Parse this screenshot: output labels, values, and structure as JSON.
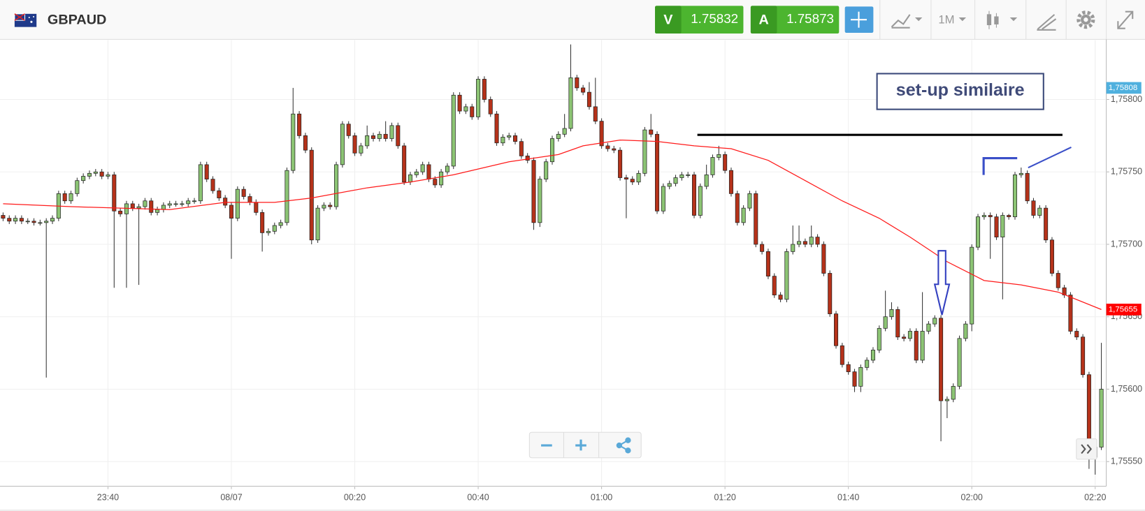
{
  "header": {
    "symbol": "GBPAUD",
    "sell_label": "V",
    "sell_price": 1.75832,
    "buy_label": "A",
    "buy_price": 1.75873,
    "timeframe": "1M"
  },
  "chart_data": {
    "type": "candlestick",
    "annotation": "set-up similaire",
    "up_color": "#8cc474",
    "down_color": "#b5321a",
    "xlim": [
      -0.5,
      178.8
    ],
    "ylim": [
      1.75533,
      1.75841
    ],
    "grid": true,
    "xticks": [
      {
        "value": 17,
        "label": "23:40"
      },
      {
        "value": 37,
        "label": "08/07"
      },
      {
        "value": 57,
        "label": "00:20"
      },
      {
        "value": 77,
        "label": "00:40"
      },
      {
        "value": 97,
        "label": "01:00"
      },
      {
        "value": 117,
        "label": "01:20"
      },
      {
        "value": 137,
        "label": "01:40"
      },
      {
        "value": 157,
        "label": "02:00"
      },
      {
        "value": 177,
        "label": "02:20"
      }
    ],
    "yticks": [
      {
        "value": 1.7555,
        "label": "1,75550"
      },
      {
        "value": 1.756,
        "label": "1,75600"
      },
      {
        "value": 1.7565,
        "label": "1,75650"
      },
      {
        "value": 1.757,
        "label": "1,75700"
      },
      {
        "value": 1.7575,
        "label": "1,75750"
      },
      {
        "value": 1.758,
        "label": "1,75800"
      }
    ],
    "price_tags": [
      {
        "value": 1.75808,
        "label": "1,75808",
        "color": "#4fb0de"
      },
      {
        "value": 1.75655,
        "label": "1,75655",
        "color": "#ff0000"
      }
    ],
    "open": [
      1.7572,
      1.75718,
      1.75716,
      1.75718,
      1.75716,
      1.75716,
      1.75715,
      1.75715,
      1.75716,
      1.75718,
      1.75735,
      1.7573,
      1.75735,
      1.75744,
      1.75747,
      1.75749,
      1.7575,
      1.75747,
      1.75748,
      1.75723,
      1.75721,
      1.75728,
      1.75725,
      1.75726,
      1.7573,
      1.75722,
      1.75724,
      1.75727,
      1.75728,
      1.75728,
      1.75728,
      1.7573,
      1.7573,
      1.75755,
      1.75745,
      1.75737,
      1.75732,
      1.75727,
      1.75718,
      1.75738,
      1.75733,
      1.75729,
      1.75722,
      1.75708,
      1.75709,
      1.75713,
      1.75715,
      1.75751,
      1.7579,
      1.75775,
      1.75765,
      1.75703,
      1.75725,
      1.75727,
      1.75726,
      1.75755,
      1.75783,
      1.75775,
      1.75763,
      1.75768,
      1.75775,
      1.75773,
      1.75776,
      1.75773,
      1.75782,
      1.75768,
      1.75743,
      1.75748,
      1.7575,
      1.75755,
      1.75745,
      1.75741,
      1.7575,
      1.75754,
      1.75803,
      1.75792,
      1.75795,
      1.75788,
      1.75814,
      1.758,
      1.7579,
      1.7577,
      1.75774,
      1.75775,
      1.75771,
      1.75761,
      1.75758,
      1.75715,
      1.75745,
      1.75757,
      1.75773,
      1.75776,
      1.7578,
      1.75815,
      1.75808,
      1.75805,
      1.75795,
      1.75785,
      1.75768,
      1.75766,
      1.75765,
      1.75746,
      1.75745,
      1.75743,
      1.75749,
      1.75779,
      1.75776,
      1.75723,
      1.7574,
      1.75742,
      1.75746,
      1.75748,
      1.75748,
      1.7572,
      1.7574,
      1.75748,
      1.7576,
      1.75762,
      1.75751,
      1.75735,
      1.75715,
      1.75725,
      1.75735,
      1.757,
      1.75695,
      1.75678,
      1.75665,
      1.75662,
      1.75695,
      1.757,
      1.75702,
      1.757,
      1.75705,
      1.757,
      1.7568,
      1.75652,
      1.7563,
      1.75617,
      1.75612,
      1.75602,
      1.75615,
      1.7562,
      1.75627,
      1.75642,
      1.7565,
      1.75655,
      1.75636,
      1.75635,
      1.7564,
      1.7562,
      1.7564,
      1.75645,
      1.75649,
      1.75592,
      1.75593,
      1.75602,
      1.75635,
      1.75645,
      1.75698,
      1.75719,
      1.7572,
      1.75719,
      1.75705,
      1.7572,
      1.75719,
      1.75748,
      1.75749,
      1.7573,
      1.7572,
      1.75725,
      1.75703,
      1.7568,
      1.7567,
      1.75665,
      1.7564,
      1.75636,
      1.7561,
      1.75553,
      1.7556
    ],
    "high": [
      1.75722,
      1.7572,
      1.7572,
      1.7572,
      1.75718,
      1.75718,
      1.75717,
      1.75718,
      1.7572,
      1.75737,
      1.75737,
      1.75737,
      1.75746,
      1.75749,
      1.75751,
      1.75752,
      1.75752,
      1.7575,
      1.7575,
      1.75725,
      1.7573,
      1.7573,
      1.75728,
      1.75732,
      1.75732,
      1.75726,
      1.75729,
      1.7573,
      1.7573,
      1.7573,
      1.75732,
      1.75732,
      1.75757,
      1.75757,
      1.75747,
      1.75739,
      1.75734,
      1.75729,
      1.7574,
      1.7574,
      1.75735,
      1.75731,
      1.75724,
      1.75711,
      1.75715,
      1.75717,
      1.75753,
      1.75808,
      1.75792,
      1.75777,
      1.75767,
      1.75727,
      1.75729,
      1.75729,
      1.75757,
      1.75785,
      1.75785,
      1.75777,
      1.7577,
      1.75782,
      1.75777,
      1.75778,
      1.75785,
      1.75784,
      1.75784,
      1.7577,
      1.7575,
      1.75752,
      1.75757,
      1.75757,
      1.75747,
      1.75752,
      1.75756,
      1.75805,
      1.75805,
      1.75797,
      1.75797,
      1.75816,
      1.75816,
      1.75802,
      1.75792,
      1.75776,
      1.75777,
      1.75777,
      1.75773,
      1.75763,
      1.7576,
      1.75747,
      1.75759,
      1.75775,
      1.75778,
      1.7579,
      1.75838,
      1.75817,
      1.7581,
      1.75812,
      1.75815,
      1.75787,
      1.7577,
      1.75768,
      1.75767,
      1.75748,
      1.75747,
      1.75751,
      1.75781,
      1.7579,
      1.75778,
      1.75742,
      1.75744,
      1.75748,
      1.7575,
      1.7575,
      1.7575,
      1.75742,
      1.75755,
      1.75762,
      1.75768,
      1.75764,
      1.75753,
      1.75737,
      1.75727,
      1.75737,
      1.75737,
      1.75702,
      1.75697,
      1.7568,
      1.75667,
      1.75697,
      1.75713,
      1.75713,
      1.75704,
      1.75713,
      1.75707,
      1.75702,
      1.75682,
      1.75654,
      1.75632,
      1.75619,
      1.75614,
      1.75617,
      1.75622,
      1.75629,
      1.75644,
      1.75668,
      1.7566,
      1.75657,
      1.75638,
      1.75642,
      1.75642,
      1.75667,
      1.75647,
      1.75651,
      1.75651,
      1.75595,
      1.75604,
      1.75637,
      1.75647,
      1.757,
      1.75721,
      1.75722,
      1.75722,
      1.75721,
      1.75722,
      1.75721,
      1.7575,
      1.75753,
      1.75751,
      1.75732,
      1.75727,
      1.75727,
      1.75705,
      1.75682,
      1.75672,
      1.75667,
      1.75642,
      1.75638,
      1.75612,
      1.75562,
      1.75632
    ],
    "low": [
      1.75716,
      1.75714,
      1.75714,
      1.75714,
      1.75714,
      1.75713,
      1.75713,
      1.75608,
      1.75714,
      1.75716,
      1.75728,
      1.75728,
      1.75733,
      1.75742,
      1.75745,
      1.75747,
      1.75745,
      1.75745,
      1.7567,
      1.75719,
      1.7567,
      1.75723,
      1.75672,
      1.75724,
      1.7572,
      1.7572,
      1.75722,
      1.75725,
      1.75726,
      1.75726,
      1.75726,
      1.75728,
      1.75728,
      1.75743,
      1.75735,
      1.7573,
      1.75725,
      1.7569,
      1.75716,
      1.75731,
      1.75727,
      1.7572,
      1.75695,
      1.75706,
      1.75707,
      1.75711,
      1.75713,
      1.75749,
      1.75773,
      1.75763,
      1.757,
      1.75701,
      1.75723,
      1.75724,
      1.75724,
      1.75753,
      1.75773,
      1.75761,
      1.75761,
      1.75766,
      1.75771,
      1.75771,
      1.75771,
      1.75771,
      1.75766,
      1.75741,
      1.75741,
      1.75746,
      1.75748,
      1.75743,
      1.75739,
      1.75739,
      1.75748,
      1.75752,
      1.7579,
      1.7579,
      1.75786,
      1.75786,
      1.75798,
      1.75788,
      1.75768,
      1.75768,
      1.75772,
      1.75769,
      1.75759,
      1.75756,
      1.7571,
      1.75712,
      1.75743,
      1.75755,
      1.75771,
      1.75774,
      1.75778,
      1.75806,
      1.75803,
      1.75793,
      1.75783,
      1.75766,
      1.75764,
      1.75763,
      1.75744,
      1.75718,
      1.75741,
      1.75741,
      1.75747,
      1.75774,
      1.75721,
      1.75721,
      1.75738,
      1.7574,
      1.75744,
      1.75746,
      1.75718,
      1.75718,
      1.75738,
      1.75746,
      1.75758,
      1.75749,
      1.75733,
      1.75713,
      1.75713,
      1.75723,
      1.75698,
      1.75693,
      1.75676,
      1.75663,
      1.7566,
      1.7566,
      1.75693,
      1.75698,
      1.75698,
      1.75698,
      1.75698,
      1.75678,
      1.7565,
      1.75628,
      1.75615,
      1.7561,
      1.75598,
      1.75598,
      1.75613,
      1.75618,
      1.75625,
      1.7564,
      1.75648,
      1.75634,
      1.75633,
      1.75633,
      1.75618,
      1.75618,
      1.75638,
      1.75643,
      1.75564,
      1.7558,
      1.75591,
      1.756,
      1.75633,
      1.7564,
      1.75696,
      1.75717,
      1.7569,
      1.75703,
      1.75662,
      1.75717,
      1.75717,
      1.75746,
      1.75728,
      1.75718,
      1.75718,
      1.75701,
      1.75678,
      1.75668,
      1.75663,
      1.75638,
      1.75634,
      1.75608,
      1.75545,
      1.75541,
      1.75558
    ],
    "close": [
      1.75718,
      1.75716,
      1.75718,
      1.75716,
      1.75716,
      1.75715,
      1.75715,
      1.75716,
      1.75718,
      1.75735,
      1.7573,
      1.75735,
      1.75744,
      1.75747,
      1.75749,
      1.7575,
      1.75747,
      1.75748,
      1.75723,
      1.75721,
      1.75728,
      1.75725,
      1.75726,
      1.7573,
      1.75722,
      1.75724,
      1.75727,
      1.75728,
      1.75728,
      1.75728,
      1.7573,
      1.7573,
      1.75755,
      1.75745,
      1.75737,
      1.75732,
      1.75727,
      1.75718,
      1.75738,
      1.75733,
      1.75729,
      1.75722,
      1.75708,
      1.75709,
      1.75713,
      1.75715,
      1.75751,
      1.7579,
      1.75775,
      1.75765,
      1.75703,
      1.75725,
      1.75727,
      1.75726,
      1.75755,
      1.75783,
      1.75775,
      1.75763,
      1.75768,
      1.75775,
      1.75773,
      1.75776,
      1.75773,
      1.75782,
      1.75768,
      1.75743,
      1.75748,
      1.7575,
      1.75755,
      1.75745,
      1.75741,
      1.7575,
      1.75754,
      1.75803,
      1.75792,
      1.75795,
      1.75788,
      1.75814,
      1.758,
      1.7579,
      1.7577,
      1.75774,
      1.75775,
      1.75771,
      1.75761,
      1.75758,
      1.75715,
      1.75745,
      1.75757,
      1.75773,
      1.75776,
      1.7578,
      1.75815,
      1.75808,
      1.75805,
      1.75795,
      1.75785,
      1.75768,
      1.75766,
      1.75765,
      1.75746,
      1.75745,
      1.75743,
      1.75749,
      1.75779,
      1.75776,
      1.75723,
      1.7574,
      1.75742,
      1.75746,
      1.75748,
      1.75748,
      1.7572,
      1.7574,
      1.75748,
      1.7576,
      1.75762,
      1.75751,
      1.75735,
      1.75715,
      1.75725,
      1.75735,
      1.757,
      1.75695,
      1.75678,
      1.75665,
      1.75662,
      1.75695,
      1.757,
      1.75702,
      1.757,
      1.75705,
      1.757,
      1.7568,
      1.75652,
      1.7563,
      1.75617,
      1.75612,
      1.75602,
      1.75615,
      1.7562,
      1.75627,
      1.75642,
      1.7565,
      1.75655,
      1.75636,
      1.75635,
      1.7564,
      1.7562,
      1.7564,
      1.75645,
      1.75649,
      1.75592,
      1.75593,
      1.75602,
      1.75635,
      1.75645,
      1.75698,
      1.75719,
      1.7572,
      1.75719,
      1.75705,
      1.7572,
      1.75719,
      1.75748,
      1.75749,
      1.7573,
      1.7572,
      1.75725,
      1.75703,
      1.7568,
      1.7567,
      1.75665,
      1.7564,
      1.75636,
      1.7561,
      1.75553,
      1.7556,
      1.756
    ],
    "ma": {
      "color": "#ff1a1a",
      "x": [
        0,
        11,
        27,
        36,
        44,
        50,
        59,
        66,
        73,
        82,
        90,
        94,
        100,
        106,
        112,
        118,
        124,
        130,
        136,
        142,
        147,
        153,
        159,
        165,
        171,
        178
      ],
      "values": [
        1.75728,
        1.75726,
        1.75724,
        1.75729,
        1.75729,
        1.75732,
        1.75739,
        1.75743,
        1.75748,
        1.75757,
        1.75762,
        1.75768,
        1.75772,
        1.75771,
        1.75768,
        1.75766,
        1.75758,
        1.75744,
        1.7573,
        1.75718,
        1.75705,
        1.75688,
        1.75675,
        1.75672,
        1.75667,
        1.75655
      ]
    }
  }
}
